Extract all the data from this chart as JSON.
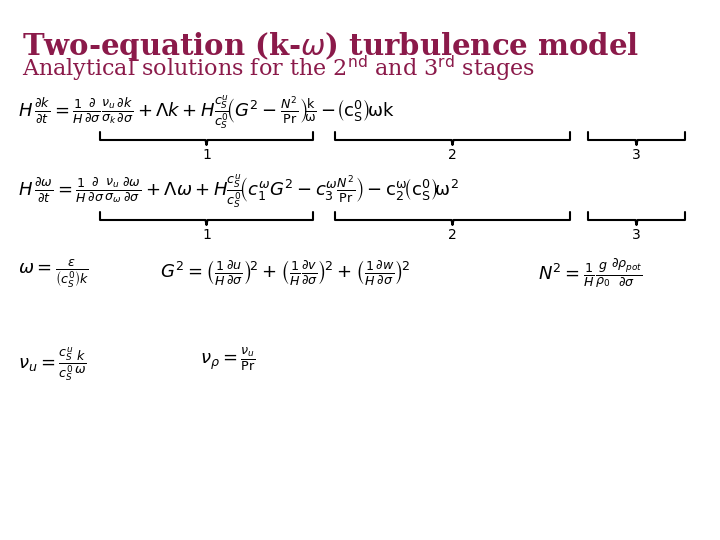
{
  "title": "Two-equation (k-$\\boldsymbol{\\omega}$) turbulence model",
  "subtitle_before": "Analytical solutions for the ",
  "subtitle_after": " and 3",
  "title_color": "#8B1A4A",
  "subtitle_color": "#8B1A4A",
  "bg_color": "#FFFFFF",
  "fig_width": 7.2,
  "fig_height": 5.4,
  "dpi": 100,
  "title_fontsize": 21,
  "subtitle_fontsize": 16,
  "eq_fontsize": 13
}
